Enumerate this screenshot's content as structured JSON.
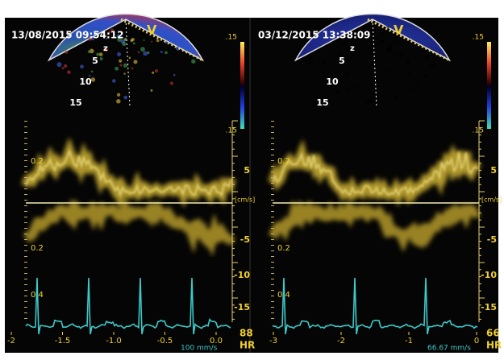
{
  "panels": [
    {
      "timestamp": "13/08/2015 09:54:12",
      "mode": "V",
      "depth_axis": "z",
      "depth_labels": [
        "5",
        "10",
        "15"
      ],
      "color_bar_labels": [
        ".15",
        ".15"
      ],
      "velocity_unit": "[cm/s]",
      "velocity_ticks": [
        "5",
        "-5",
        "-10",
        "-15"
      ],
      "left_ticks": [
        "0.2",
        "0.2",
        "0.4"
      ],
      "time_ticks": [
        "-2",
        "-1.5",
        "-1.0",
        "-0.5",
        "0.0"
      ],
      "sweep_speed": "100 mm/s",
      "hr_value": "88",
      "hr_label": "HR"
    },
    {
      "timestamp": "03/12/2015 13:38:09",
      "mode": "V",
      "depth_axis": "z",
      "depth_labels": [
        "5",
        "10",
        "15"
      ],
      "color_bar_labels": [
        ".15",
        ".15"
      ],
      "velocity_unit": "[cm/s]",
      "velocity_ticks": [
        "5",
        "-5",
        "-10",
        "-15"
      ],
      "left_ticks": [
        "0.2",
        "0.2",
        "0.4"
      ],
      "time_ticks": [
        "-3",
        "-2",
        "-1",
        "0"
      ],
      "sweep_speed": "66.67 mm/s",
      "hr_value": "66",
      "hr_label": "HR"
    }
  ]
}
